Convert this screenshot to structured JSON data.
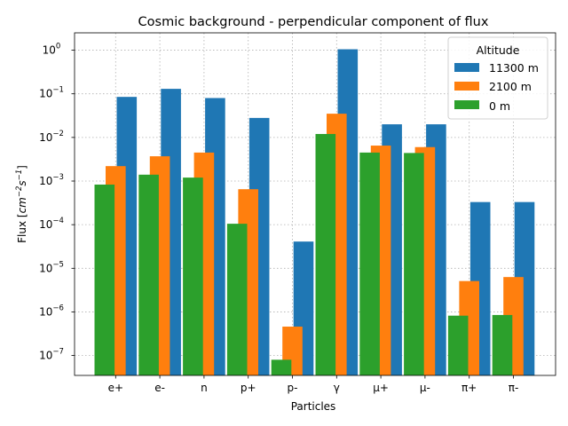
{
  "chart_data": {
    "type": "bar",
    "title": "Cosmic background - perpendicular component of flux",
    "xlabel": "Particles",
    "ylabel_prefix": "Flux [",
    "ylabel_unit_1": "cm",
    "ylabel_exp_1": "−2",
    "ylabel_unit_2": "s",
    "ylabel_exp_2": "−1",
    "ylabel_suffix": "]",
    "yscale": "log",
    "ylim": [
      3.5e-08,
      2.5
    ],
    "grid": true,
    "categories": [
      "e+",
      "e-",
      "n",
      "p+",
      "p-",
      "γ",
      "μ+",
      "μ-",
      "π+",
      "π-"
    ],
    "y_ticks": [
      {
        "value": 1e-07,
        "base": "10",
        "exp": "−7"
      },
      {
        "value": 1e-06,
        "base": "10",
        "exp": "−6"
      },
      {
        "value": 1e-05,
        "base": "10",
        "exp": "−5"
      },
      {
        "value": 0.0001,
        "base": "10",
        "exp": "−4"
      },
      {
        "value": 0.001,
        "base": "10",
        "exp": "−3"
      },
      {
        "value": 0.01,
        "base": "10",
        "exp": "−2"
      },
      {
        "value": 0.1,
        "base": "10",
        "exp": "−1"
      },
      {
        "value": 1,
        "base": "10",
        "exp": "0"
      }
    ],
    "legend": {
      "title": "Altitude",
      "position": "top-right"
    },
    "series": [
      {
        "name": "11300 m",
        "color": "#1f77b4",
        "values": [
          0.085,
          0.13,
          0.08,
          0.028,
          4.1e-05,
          1.05,
          0.02,
          0.02,
          0.00033,
          0.00033
        ]
      },
      {
        "name": "2100 m",
        "color": "#ff7f0e",
        "values": [
          0.0022,
          0.0037,
          0.0045,
          0.00065,
          4.6e-07,
          0.035,
          0.0065,
          0.006,
          5.1e-06,
          6.3e-06
        ]
      },
      {
        "name": "0 m",
        "color": "#2ca02c",
        "values": [
          0.00083,
          0.0014,
          0.0012,
          0.000105,
          8e-08,
          0.012,
          0.0045,
          0.0044,
          8.2e-07,
          8.5e-07
        ]
      }
    ]
  }
}
